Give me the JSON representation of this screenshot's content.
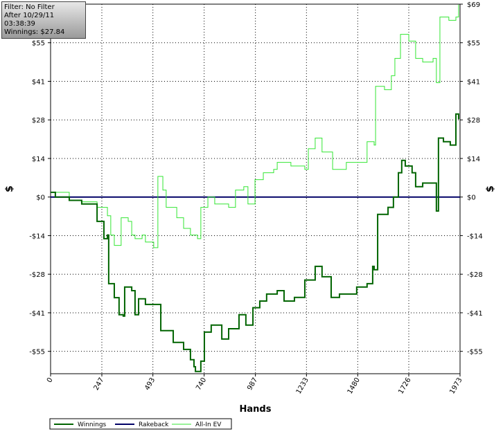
{
  "info": {
    "lines": [
      "Filter: No Filter",
      "After 10/29/11 03:38:39",
      "Winnings: $27.84"
    ]
  },
  "chart_data": {
    "type": "line",
    "xlabel": "Hands",
    "ylabel": "$",
    "y2label": "$",
    "xlim": [
      0,
      1973
    ],
    "ylim": [
      -63.2,
      69
    ],
    "xticks": [
      0,
      247,
      493,
      740,
      987,
      1233,
      1480,
      1726,
      1973
    ],
    "yticks": [
      {
        "value": 69,
        "label": "$69"
      },
      {
        "value": 55.2,
        "label": "$55"
      },
      {
        "value": 41.4,
        "label": "$41"
      },
      {
        "value": 27.6,
        "label": "$28"
      },
      {
        "value": 13.8,
        "label": "$14"
      },
      {
        "value": 0,
        "label": "$0"
      },
      {
        "value": -13.8,
        "label": "-$14"
      },
      {
        "value": -27.6,
        "label": "-$28"
      },
      {
        "value": -41.4,
        "label": "-$41"
      },
      {
        "value": -55.2,
        "label": "-$55"
      }
    ],
    "grid": true,
    "series": [
      {
        "name": "Winnings",
        "color": "#006400",
        "width": 2,
        "x": [
          0,
          23,
          90,
          150,
          224,
          257,
          274,
          280,
          307,
          330,
          350,
          357,
          391,
          407,
          424,
          457,
          507,
          531,
          591,
          641,
          674,
          691,
          698,
          724,
          741,
          774,
          825,
          858,
          908,
          941,
          975,
          1008,
          1041,
          1092,
          1125,
          1175,
          1225,
          1275,
          1308,
          1352,
          1392,
          1475,
          1525,
          1552,
          1559,
          1576,
          1626,
          1652,
          1676,
          1692,
          1709,
          1742,
          1759,
          1793,
          1843,
          1859,
          1869,
          1893,
          1926,
          1953,
          1966
        ],
        "values": [
          1.7,
          0,
          -1.2,
          -2.5,
          -8.7,
          -14.9,
          -13.6,
          -31.0,
          -36.0,
          -42.1,
          -42.6,
          -32.2,
          -33.5,
          -42.1,
          -36.4,
          -38.4,
          -38.4,
          -47.8,
          -52.0,
          -54.5,
          -58.2,
          -60.7,
          -62.4,
          -58.7,
          -48.3,
          -45.8,
          -50.8,
          -47.1,
          -42.1,
          -45.8,
          -39.6,
          -37.2,
          -34.7,
          -33.5,
          -37.2,
          -35.9,
          -29.7,
          -24.8,
          -28.5,
          -35.9,
          -34.7,
          -32.2,
          -31.0,
          -24.8,
          -26.0,
          -6.2,
          -3.7,
          0,
          8.7,
          13.1,
          11.1,
          8.7,
          3.7,
          5.0,
          5.0,
          -5.0,
          21.1,
          19.8,
          18.6,
          29.7,
          27.8
        ]
      },
      {
        "name": "Rakeback",
        "color": "#000066",
        "width": 2,
        "x": [
          0,
          1973
        ],
        "values": [
          0,
          0
        ]
      },
      {
        "name": "All-In EV",
        "color": "#33e633",
        "width": 1,
        "x": [
          0,
          90,
          150,
          224,
          274,
          290,
          307,
          340,
          374,
          391,
          407,
          441,
          457,
          497,
          517,
          541,
          557,
          608,
          641,
          674,
          708,
          724,
          758,
          791,
          858,
          891,
          931,
          951,
          985,
          1025,
          1075,
          1092,
          1158,
          1225,
          1242,
          1275,
          1308,
          1359,
          1425,
          1492,
          1525,
          1559,
          1566,
          1609,
          1642,
          1659,
          1686,
          1726,
          1759,
          1793,
          1843,
          1859,
          1876,
          1919,
          1953,
          1966
        ],
        "values": [
          1.7,
          -1.2,
          -1.7,
          -3.7,
          -6.7,
          -13.6,
          -17.3,
          -7.4,
          -8.7,
          -13.6,
          -14.9,
          -13.6,
          -16.1,
          -18.1,
          7.4,
          2.5,
          -3.7,
          -7.4,
          -11.2,
          -13.6,
          -14.9,
          -3.7,
          0,
          -2.5,
          -3.7,
          2.5,
          3.7,
          -2.5,
          6.2,
          8.7,
          9.9,
          12.4,
          11.1,
          9.9,
          17.3,
          21.1,
          16.1,
          9.9,
          12.4,
          12.4,
          19.8,
          18.6,
          39.6,
          38.4,
          43.4,
          49.6,
          58.2,
          55.8,
          49.6,
          48.3,
          49.6,
          40.9,
          64.4,
          63.2,
          64.4,
          68.8
        ]
      }
    ]
  }
}
